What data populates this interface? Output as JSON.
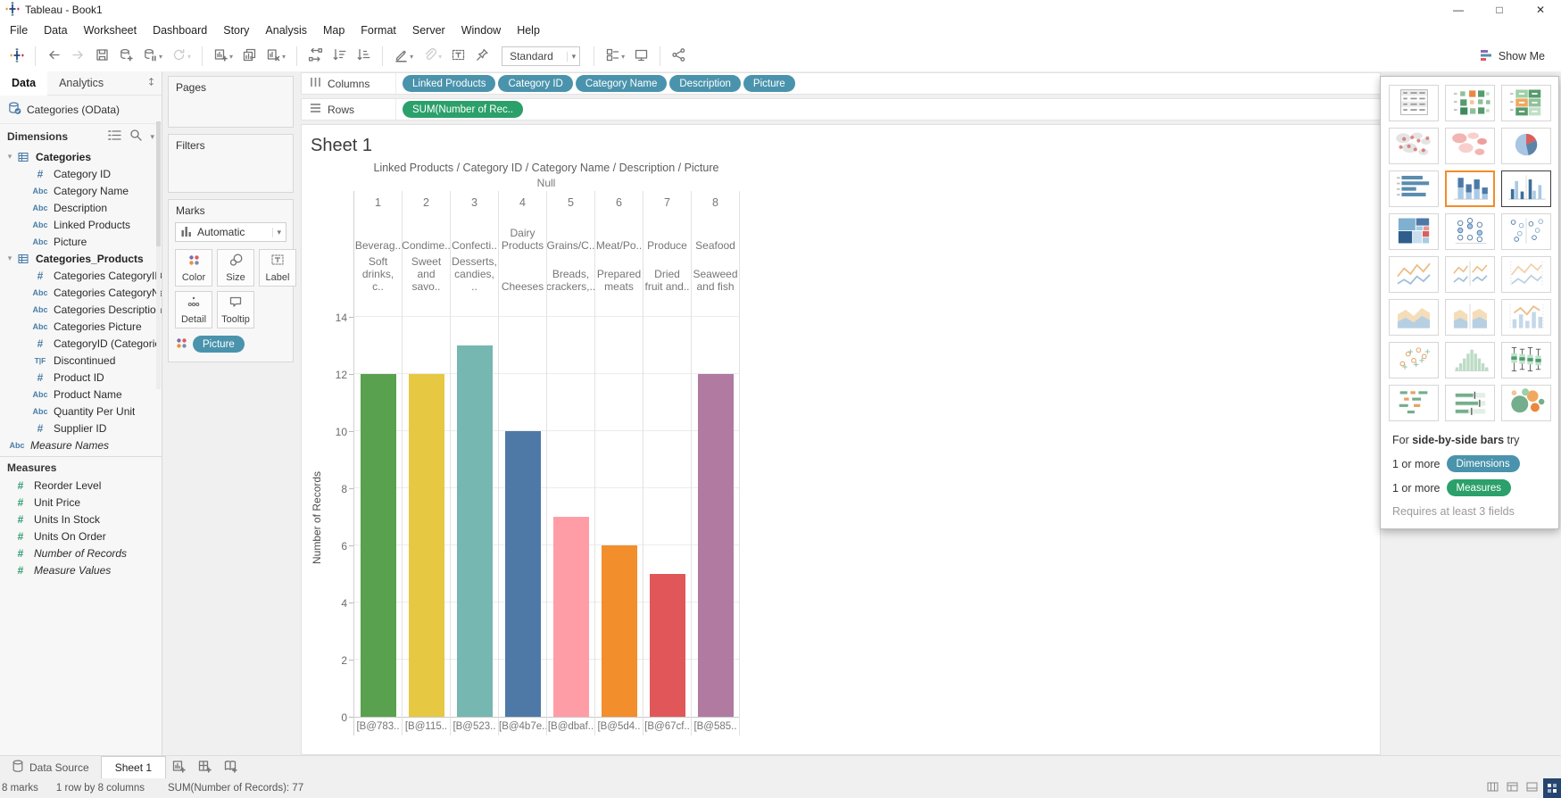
{
  "window": {
    "title": "Tableau - Book1"
  },
  "menu": {
    "items": [
      "File",
      "Data",
      "Worksheet",
      "Dashboard",
      "Story",
      "Analysis",
      "Map",
      "Format",
      "Server",
      "Window",
      "Help"
    ]
  },
  "toolbar": {
    "view_mode": "Standard",
    "show_me_label": "Show Me",
    "sequence": [
      {
        "icon": "tableau-logo"
      },
      {
        "sep": true
      },
      {
        "icon": "undo"
      },
      {
        "icon": "redo",
        "disabled": true
      },
      {
        "icon": "save"
      },
      {
        "icon": "new-data-source"
      },
      {
        "icon": "pause-auto-updates",
        "caret": true
      },
      {
        "icon": "run-update",
        "caret": true,
        "disabled": true
      },
      {
        "sep": true
      },
      {
        "icon": "new-worksheet",
        "caret": true
      },
      {
        "icon": "duplicate-sheet"
      },
      {
        "icon": "clear-sheet",
        "caret": true
      },
      {
        "sep": true
      },
      {
        "icon": "swap-rows-and-columns"
      },
      {
        "icon": "sort-ascending"
      },
      {
        "icon": "sort-descending"
      },
      {
        "sep": true
      },
      {
        "icon": "highlight",
        "caret": true
      },
      {
        "icon": "paperclip",
        "caret": true,
        "disabled": true
      },
      {
        "icon": "text-label"
      },
      {
        "icon": "pin"
      },
      {
        "select": true
      },
      {
        "sep": true
      },
      {
        "icon": "show-mark-labels",
        "caret": true
      },
      {
        "icon": "presentation-mode"
      },
      {
        "sep": true
      },
      {
        "icon": "share"
      }
    ]
  },
  "data_pane": {
    "tabs": [
      {
        "label": "Data",
        "active": true
      },
      {
        "label": "Analytics",
        "active": false
      }
    ],
    "connection": "Categories (OData)",
    "dimensions_header": "Dimensions",
    "icon_glyphs": {
      "num": "#",
      "str": "Abc",
      "bool": "T|F"
    },
    "tables": [
      {
        "name": "Categories",
        "fields": [
          {
            "type": "num",
            "label": "Category ID"
          },
          {
            "type": "str",
            "label": "Category Name"
          },
          {
            "type": "str",
            "label": "Description"
          },
          {
            "type": "str",
            "label": "Linked Products"
          },
          {
            "type": "str",
            "label": "Picture"
          }
        ]
      },
      {
        "name": "Categories_Products",
        "fields": [
          {
            "type": "num",
            "label": "Categories CategoryID"
          },
          {
            "type": "str",
            "label": "Categories CategoryNa.."
          },
          {
            "type": "str",
            "label": "Categories Description"
          },
          {
            "type": "str",
            "label": "Categories Picture"
          },
          {
            "type": "num",
            "label": "CategoryID (Categorie..."
          },
          {
            "type": "bool",
            "label": "Discontinued"
          },
          {
            "type": "num",
            "label": "Product ID"
          },
          {
            "type": "str",
            "label": "Product Name"
          },
          {
            "type": "str",
            "label": "Quantity Per Unit"
          },
          {
            "type": "num",
            "label": "Supplier ID"
          }
        ]
      }
    ],
    "root_fields": [
      {
        "type": "str",
        "label": "Measure Names",
        "italic": true
      }
    ],
    "measures_header": "Measures",
    "measures": [
      {
        "type": "num",
        "label": "Reorder Level"
      },
      {
        "type": "num",
        "label": "Unit Price"
      },
      {
        "type": "num",
        "label": "Units In Stock"
      },
      {
        "type": "num",
        "label": "Units On Order"
      },
      {
        "type": "num",
        "label": "Number of Records",
        "italic": true
      },
      {
        "type": "num",
        "label": "Measure Values",
        "italic": true
      }
    ]
  },
  "cards": {
    "pages_label": "Pages",
    "filters_label": "Filters",
    "marks": {
      "label": "Marks",
      "mark_type": "Automatic",
      "buttons": [
        "Color",
        "Size",
        "Label",
        "Detail",
        "Tooltip"
      ],
      "pills": [
        "Picture"
      ]
    }
  },
  "shelves": {
    "columns_label": "Columns",
    "rows_label": "Rows",
    "columns_pills": [
      "Linked Products",
      "Category ID",
      "Category Name",
      "Description",
      "Picture"
    ],
    "rows_pills": [
      "SUM(Number of Rec.."
    ]
  },
  "sheet": {
    "title": "Sheet 1"
  },
  "chart_data": {
    "type": "bar",
    "title": "Linked Products / Category ID / Category Name / Description / Picture",
    "group_header": "Null",
    "categories": [
      "1",
      "2",
      "3",
      "4",
      "5",
      "6",
      "7",
      "8"
    ],
    "category_names": [
      "Beverag..",
      "Condime..",
      "Confecti..",
      "Dairy Products",
      "Grains/C..",
      "Meat/Po..",
      "Produce",
      "Seafood"
    ],
    "descriptions": [
      "Soft drinks, c..",
      "Sweet and savo..",
      "Desserts, candies, ..",
      "Cheeses",
      "Breads, crackers,..",
      "Prepared meats",
      "Dried fruit and..",
      "Seaweed and fish"
    ],
    "picture_labels": [
      "[B@783..",
      "[B@115..",
      "[B@523..",
      "[B@4b7e..",
      "[B@dbaf..",
      "[B@5d4..",
      "[B@67cf..",
      "[B@585.."
    ],
    "values": [
      12,
      12,
      13,
      10,
      7,
      6,
      5,
      12
    ],
    "bar_colors": [
      "#59A14F",
      "#E7C842",
      "#76B7B2",
      "#4E79A7",
      "#FF9DA7",
      "#F28E2B",
      "#E15759",
      "#B07AA1"
    ],
    "ylabel": "Number of Records",
    "yticks": [
      0,
      2,
      4,
      6,
      8,
      10,
      12,
      14
    ],
    "ylim": [
      0,
      14
    ],
    "grid": true,
    "legend": "none"
  },
  "show_me": {
    "button_label": "Show Me",
    "tiles": [
      {
        "name": "text-table"
      },
      {
        "name": "heat-map"
      },
      {
        "name": "highlight-table"
      },
      {
        "name": "symbol-map"
      },
      {
        "name": "filled-map"
      },
      {
        "name": "pie-chart"
      },
      {
        "name": "horizontal-bars"
      },
      {
        "name": "stacked-bars",
        "state": "selected"
      },
      {
        "name": "side-by-side-bars",
        "state": "recommended"
      },
      {
        "name": "treemap"
      },
      {
        "name": "circle-views"
      },
      {
        "name": "side-by-side-circles"
      },
      {
        "name": "lines-continuous"
      },
      {
        "name": "lines-discrete"
      },
      {
        "name": "dual-lines"
      },
      {
        "name": "area-continuous"
      },
      {
        "name": "area-discrete"
      },
      {
        "name": "dual-combination"
      },
      {
        "name": "scatter-plot"
      },
      {
        "name": "histogram"
      },
      {
        "name": "box-and-whisker"
      },
      {
        "name": "gantt"
      },
      {
        "name": "bullet-graph"
      },
      {
        "name": "packed-bubbles"
      }
    ],
    "hint_prefix": "For",
    "hint_bold": "side-by-side bars",
    "hint_suffix": "try",
    "requirements": [
      {
        "prefix": "1 or more",
        "pill": "Dimensions",
        "color": "#4a93ac"
      },
      {
        "prefix": "1 or more",
        "pill": "Measures",
        "color": "#2ba06a"
      }
    ],
    "note": "Requires at least 3 fields"
  },
  "tabs_bar": {
    "data_source_label": "Data Source",
    "sheets": [
      {
        "label": "Sheet 1",
        "active": true
      }
    ],
    "new_buttons": [
      "new-worksheet",
      "new-dashboard",
      "new-story"
    ]
  },
  "status_bar": {
    "marks": "8 marks",
    "size": "1 row by 8 columns",
    "aggregate": "SUM(Number of Records): 77"
  }
}
